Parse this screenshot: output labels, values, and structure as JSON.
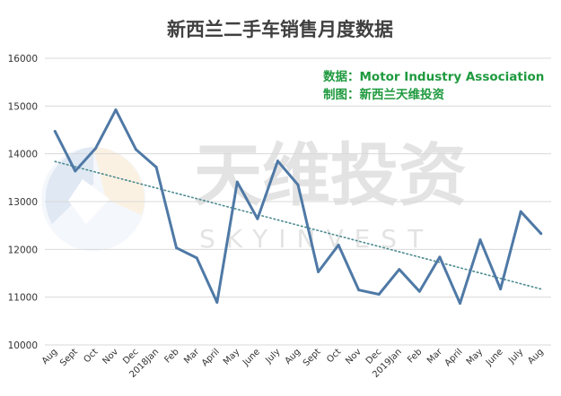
{
  "chart_data": {
    "type": "line",
    "title": "新西兰二手车销售月度数据",
    "source_line": "数据：Motor Industry Association",
    "made_by_line": "制图：新西兰天维投资",
    "watermark": {
      "text": "天维投资",
      "subtext": "SKYINVEST"
    },
    "categories": [
      "Aug",
      "Sept",
      "Oct",
      "Nov",
      "Dec",
      "2018Jan",
      "Feb",
      "Mar",
      "April",
      "May",
      "June",
      "July",
      "Aug",
      "Sept",
      "Oct",
      "Nov",
      "Dec",
      "2019Jan",
      "Feb",
      "Mar",
      "April",
      "May",
      "June",
      "July",
      "Aug"
    ],
    "values": [
      14470,
      13640,
      14110,
      14920,
      14090,
      13720,
      12030,
      11820,
      10890,
      13410,
      12640,
      13850,
      13350,
      11530,
      12090,
      11150,
      11060,
      11580,
      11120,
      11840,
      10870,
      12200,
      11170,
      12790,
      12330
    ],
    "trendline": {
      "style": "dotted",
      "start_value": 13840,
      "end_value": 11170
    },
    "ylim": [
      10000,
      16000
    ],
    "yticks": [
      "10000",
      "11000",
      "12000",
      "13000",
      "14000",
      "15000",
      "16000"
    ],
    "grid": true,
    "colors": {
      "line": "#4f79a6",
      "trendline": "#4a8a8f",
      "grid": "#d9d9d9",
      "title": "#404040",
      "source_text": "#1f9a3f",
      "watermark": "#e3e3e3"
    }
  }
}
